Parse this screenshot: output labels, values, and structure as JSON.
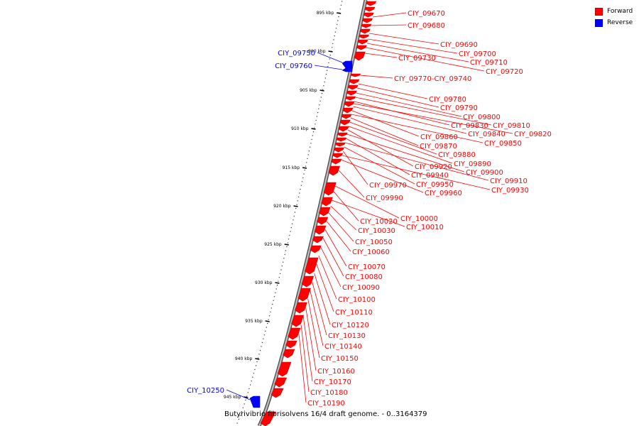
{
  "colors": {
    "forward": "#ff0000",
    "reverse": "#0000ff",
    "backbone": "#888888"
  },
  "legend": [
    {
      "label": "Forward",
      "color": "#ff0000"
    },
    {
      "label": "Reverse",
      "color": "#0000ff"
    }
  ],
  "caption": "Butyrivibrio fibrisolvens 16/4 draft genome. - 0..3164379",
  "ticks": [
    "895 kbp",
    "900 kbp",
    "905 kbp",
    "910 kbp",
    "915 kbp",
    "920 kbp",
    "925 kbp",
    "930 kbp",
    "935 kbp",
    "940 kbp",
    "945 kbp"
  ],
  "gene_labels": {
    "forward": [
      "CIY_09670",
      "CIY_09680",
      "CIY_09690",
      "CIY_09700",
      "CIY_09710",
      "CIY_09720",
      "CIY_09730",
      "CIY_09770-CIY_09740",
      "CIY_09780",
      "CIY_09790",
      "CIY_09800",
      "CIY_09810",
      "CIY_09830",
      "CIY_09820",
      "CIY_09840",
      "CIY_09860",
      "CIY_09850",
      "CIY_09870",
      "CIY_09880",
      "CIY_09890",
      "CIY_09920",
      "CIY_09900",
      "CIY_09940",
      "CIY_09910",
      "CIY_09950",
      "CIY_09970",
      "CIY_09930",
      "CIY_09960",
      "CIY_09990",
      "CIY_10000",
      "CIY_10020",
      "CIY_10010",
      "CIY_10030",
      "CIY_10050",
      "CIY_10060",
      "CIY_10070",
      "CIY_10080",
      "CIY_10090",
      "CIY_10100",
      "CIY_10110",
      "CIY_10120",
      "CIY_10130",
      "CIY_10140",
      "CIY_10150",
      "CIY_10160",
      "CIY_10170",
      "CIY_10180",
      "CIY_10190"
    ],
    "reverse": [
      "CIY_09750",
      "CIY_09760",
      "CIY_10250"
    ]
  }
}
